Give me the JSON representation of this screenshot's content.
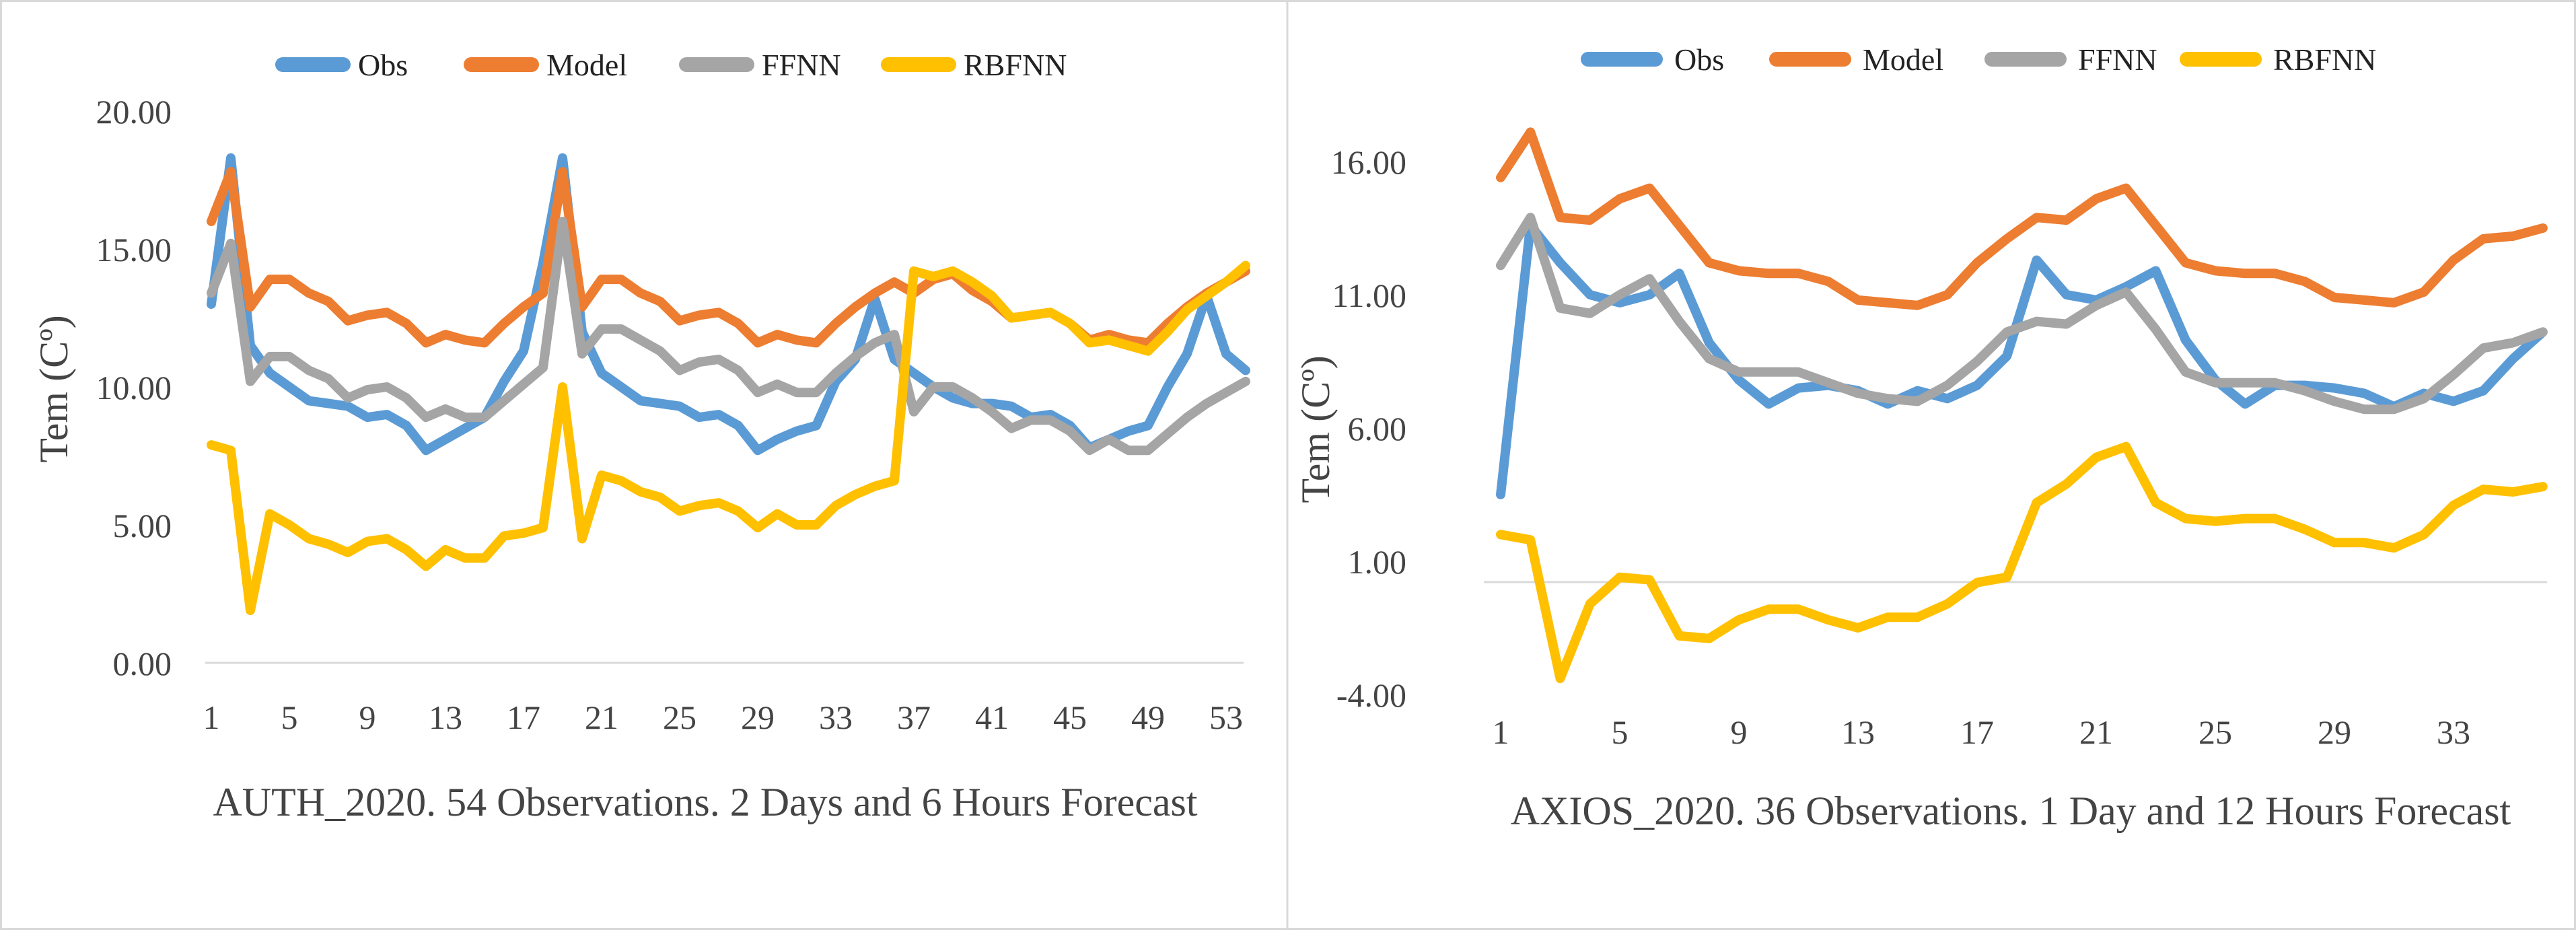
{
  "series_colors": {
    "Obs": "#5B9BD5",
    "Model": "#ED7D31",
    "FFNN": "#A5A5A5",
    "RBFNN": "#FFC000"
  },
  "chart_data": [
    {
      "type": "line",
      "title": "",
      "caption": "AUTH_2020. 54 Observations. 2 Days and 6 Hours Forecast",
      "xlabel": "",
      "ylabel": "Tem (Cº)",
      "x": [
        1,
        2,
        3,
        4,
        5,
        6,
        7,
        8,
        9,
        10,
        11,
        12,
        13,
        14,
        15,
        16,
        17,
        18,
        19,
        20,
        21,
        22,
        23,
        24,
        25,
        26,
        27,
        28,
        29,
        30,
        31,
        32,
        33,
        34,
        35,
        36,
        37,
        38,
        39,
        40,
        41,
        42,
        43,
        44,
        45,
        46,
        47,
        48,
        49,
        50,
        51,
        52,
        53,
        54
      ],
      "x_tick_labels": [
        "1",
        "5",
        "9",
        "13",
        "17",
        "21",
        "25",
        "29",
        "33",
        "37",
        "41",
        "45",
        "49",
        "53"
      ],
      "y_tick_labels": [
        "0.00",
        "5.00",
        "10.00",
        "15.00",
        "20.00"
      ],
      "ylim": [
        0,
        20
      ],
      "legend": [
        "Obs",
        "Model",
        "FFNN",
        "RBFNN"
      ],
      "legend_position": "top",
      "series": [
        {
          "name": "Obs",
          "values": [
            13.0,
            18.3,
            11.5,
            10.5,
            10.0,
            9.5,
            9.4,
            9.3,
            8.9,
            9.0,
            8.6,
            7.7,
            8.1,
            8.5,
            8.9,
            10.2,
            11.3,
            14.5,
            18.3,
            12.0,
            10.5,
            10.0,
            9.5,
            9.4,
            9.3,
            8.9,
            9.0,
            8.6,
            7.7,
            8.1,
            8.4,
            8.6,
            10.2,
            11.0,
            13.2,
            11.0,
            10.5,
            10.0,
            9.6,
            9.4,
            9.4,
            9.3,
            8.9,
            9.0,
            8.6,
            7.8,
            8.1,
            8.4,
            8.6,
            10.0,
            11.2,
            13.3,
            11.2,
            10.6
          ]
        },
        {
          "name": "Model",
          "values": [
            16.0,
            17.8,
            12.9,
            13.9,
            13.9,
            13.4,
            13.1,
            12.4,
            12.6,
            12.7,
            12.3,
            11.6,
            11.9,
            11.7,
            11.6,
            12.3,
            12.9,
            13.4,
            17.8,
            12.9,
            13.9,
            13.9,
            13.4,
            13.1,
            12.4,
            12.6,
            12.7,
            12.3,
            11.6,
            11.9,
            11.7,
            11.6,
            12.3,
            12.9,
            13.4,
            13.8,
            13.4,
            13.9,
            14.1,
            13.5,
            13.1,
            12.5,
            12.6,
            12.7,
            12.3,
            11.7,
            11.9,
            11.7,
            11.6,
            12.3,
            12.9,
            13.4,
            13.8,
            14.2
          ]
        },
        {
          "name": "FFNN",
          "values": [
            13.4,
            15.2,
            10.2,
            11.1,
            11.1,
            10.6,
            10.3,
            9.6,
            9.9,
            10.0,
            9.6,
            8.9,
            9.2,
            8.9,
            8.9,
            9.5,
            10.1,
            10.7,
            16.0,
            11.2,
            12.1,
            12.1,
            11.7,
            11.3,
            10.6,
            10.9,
            11.0,
            10.6,
            9.8,
            10.1,
            9.8,
            9.8,
            10.5,
            11.1,
            11.6,
            11.9,
            9.1,
            10.0,
            10.0,
            9.6,
            9.1,
            8.5,
            8.8,
            8.8,
            8.4,
            7.7,
            8.1,
            7.7,
            7.7,
            8.3,
            8.9,
            9.4,
            9.8,
            10.2
          ]
        },
        {
          "name": "RBFNN",
          "values": [
            7.9,
            7.7,
            1.9,
            5.4,
            5.0,
            4.5,
            4.3,
            4.0,
            4.4,
            4.5,
            4.1,
            3.5,
            4.1,
            3.8,
            3.8,
            4.6,
            4.7,
            4.9,
            10.0,
            4.5,
            6.8,
            6.6,
            6.2,
            6.0,
            5.5,
            5.7,
            5.8,
            5.5,
            4.9,
            5.4,
            5.0,
            5.0,
            5.7,
            6.1,
            6.4,
            6.6,
            14.2,
            14.0,
            14.2,
            13.8,
            13.3,
            12.5,
            12.6,
            12.7,
            12.3,
            11.6,
            11.7,
            11.5,
            11.3,
            12.0,
            12.8,
            13.3,
            13.8,
            14.4
          ]
        }
      ]
    },
    {
      "type": "line",
      "title": "",
      "caption": "AXIOS_2020. 36 Observations. 1 Day and 12 Hours Forecast",
      "xlabel": "",
      "ylabel": "Tem (Cº)",
      "x": [
        1,
        2,
        3,
        4,
        5,
        6,
        7,
        8,
        9,
        10,
        11,
        12,
        13,
        14,
        15,
        16,
        17,
        18,
        19,
        20,
        21,
        22,
        23,
        24,
        25,
        26,
        27,
        28,
        29,
        30,
        31,
        32,
        33,
        34,
        35,
        36
      ],
      "x_tick_labels": [
        "1",
        "5",
        "9",
        "13",
        "17",
        "21",
        "25",
        "29",
        "33"
      ],
      "y_tick_labels": [
        "-4.00",
        "1.00",
        "6.00",
        "11.00",
        "16.00"
      ],
      "ylim": [
        -4,
        16
      ],
      "legend": [
        "Obs",
        "Model",
        "FFNN",
        "RBFNN"
      ],
      "legend_position": "top",
      "series": [
        {
          "name": "Obs",
          "values": [
            3.5,
            13.6,
            12.2,
            11.0,
            10.7,
            11.0,
            11.8,
            9.2,
            7.8,
            6.9,
            7.5,
            7.6,
            7.4,
            6.9,
            7.4,
            7.1,
            7.6,
            8.7,
            12.3,
            11.0,
            10.8,
            11.3,
            11.9,
            9.3,
            7.8,
            6.9,
            7.6,
            7.6,
            7.5,
            7.3,
            6.8,
            7.3,
            7.0,
            7.4,
            8.6,
            9.6
          ]
        },
        {
          "name": "Model",
          "values": [
            15.4,
            17.1,
            13.9,
            13.8,
            14.6,
            15.0,
            13.6,
            12.2,
            11.9,
            11.8,
            11.8,
            11.5,
            10.8,
            10.7,
            10.6,
            11.0,
            12.2,
            13.1,
            13.9,
            13.8,
            14.6,
            15.0,
            13.6,
            12.2,
            11.9,
            11.8,
            11.8,
            11.5,
            10.9,
            10.8,
            10.7,
            11.1,
            12.3,
            13.1,
            13.2,
            13.5
          ]
        },
        {
          "name": "FFNN",
          "values": [
            12.1,
            13.9,
            10.5,
            10.3,
            11.0,
            11.6,
            10.0,
            8.6,
            8.1,
            8.1,
            8.1,
            7.7,
            7.3,
            7.1,
            7.0,
            7.6,
            8.5,
            9.6,
            10.0,
            9.9,
            10.6,
            11.1,
            9.7,
            8.1,
            7.7,
            7.7,
            7.7,
            7.4,
            7.0,
            6.7,
            6.7,
            7.1,
            8.0,
            9.0,
            9.2,
            9.6
          ]
        },
        {
          "name": "RBFNN",
          "values": [
            2.0,
            1.8,
            -3.4,
            -0.6,
            0.4,
            0.3,
            -1.8,
            -1.9,
            -1.2,
            -0.8,
            -0.8,
            -1.2,
            -1.5,
            -1.1,
            -1.1,
            -0.6,
            0.2,
            0.4,
            3.2,
            3.9,
            4.9,
            5.3,
            3.2,
            2.6,
            2.5,
            2.6,
            2.6,
            2.2,
            1.7,
            1.7,
            1.5,
            2.0,
            3.1,
            3.7,
            3.6,
            3.8
          ]
        }
      ]
    }
  ]
}
